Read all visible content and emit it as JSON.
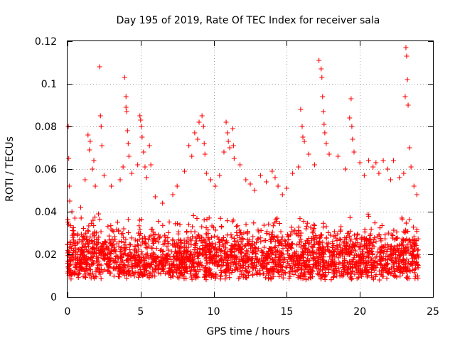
{
  "chart_data": {
    "type": "scatter",
    "title": "Day 195 of 2019, Rate Of TEC Index for receiver sala",
    "xlabel": "GPS time / hours",
    "ylabel": "ROTI / TECUs",
    "xlim": [
      0,
      25
    ],
    "ylim": [
      0,
      0.12
    ],
    "x_ticks": [
      0,
      5,
      10,
      15,
      20,
      25
    ],
    "y_ticks": [
      0,
      0.02,
      0.04,
      0.06,
      0.08,
      0.1,
      0.12
    ],
    "x_tick_labels": [
      "0",
      "5",
      "10",
      "15",
      "20",
      "25"
    ],
    "y_tick_labels": [
      "0",
      "0.02",
      "0.04",
      "0.06",
      "0.08",
      "0.1",
      "0.12"
    ],
    "grid": true,
    "marker": "+",
    "series": [
      {
        "name": "ROTI",
        "color": "#ff0000",
        "band": {
          "x_range": [
            0,
            24
          ],
          "y_low": 0.004,
          "y_high": 0.032,
          "count": 2600
        },
        "x": [
          0.05,
          0.08,
          0.12,
          0.15,
          0.3,
          0.5,
          0.9,
          1.2,
          1.4,
          1.5,
          1.55,
          1.7,
          1.8,
          1.9,
          2.2,
          2.25,
          2.3,
          2.35,
          2.5,
          3.0,
          3.6,
          3.8,
          3.9,
          4.0,
          4.0,
          4.05,
          4.1,
          4.15,
          4.2,
          4.4,
          4.8,
          4.95,
          5.0,
          5.05,
          5.1,
          5.2,
          5.3,
          5.4,
          5.6,
          5.7,
          6.0,
          6.5,
          7.2,
          7.5,
          8.0,
          8.3,
          8.5,
          8.7,
          8.9,
          9.0,
          9.2,
          9.3,
          9.35,
          9.4,
          9.5,
          9.8,
          10.1,
          10.4,
          10.7,
          10.85,
          10.95,
          11.0,
          11.1,
          11.3,
          11.35,
          11.4,
          11.8,
          12.2,
          12.5,
          12.8,
          13.2,
          13.6,
          14.0,
          14.2,
          14.4,
          14.7,
          15.0,
          15.4,
          15.8,
          15.95,
          16.05,
          16.1,
          16.2,
          16.5,
          16.9,
          17.2,
          17.35,
          17.4,
          17.45,
          17.5,
          17.55,
          17.6,
          17.7,
          17.9,
          18.5,
          19.0,
          19.3,
          19.4,
          19.45,
          19.5,
          19.6,
          20.0,
          20.3,
          20.6,
          20.9,
          21.1,
          21.3,
          21.6,
          21.9,
          22.1,
          22.3,
          22.7,
          23.0,
          23.1,
          23.15,
          23.2,
          23.25,
          23.3,
          23.4,
          23.5,
          23.7,
          23.9
        ],
        "y": [
          0.08,
          0.065,
          0.052,
          0.045,
          0.04,
          0.037,
          0.042,
          0.055,
          0.076,
          0.069,
          0.073,
          0.06,
          0.064,
          0.052,
          0.108,
          0.085,
          0.08,
          0.071,
          0.057,
          0.052,
          0.055,
          0.061,
          0.103,
          0.094,
          0.089,
          0.087,
          0.078,
          0.072,
          0.066,
          0.058,
          0.062,
          0.085,
          0.083,
          0.08,
          0.075,
          0.068,
          0.061,
          0.056,
          0.071,
          0.062,
          0.047,
          0.044,
          0.048,
          0.052,
          0.059,
          0.071,
          0.066,
          0.077,
          0.074,
          0.082,
          0.085,
          0.08,
          0.072,
          0.067,
          0.058,
          0.055,
          0.052,
          0.057,
          0.068,
          0.082,
          0.077,
          0.073,
          0.07,
          0.079,
          0.071,
          0.065,
          0.062,
          0.055,
          0.053,
          0.05,
          0.057,
          0.054,
          0.059,
          0.056,
          0.052,
          0.048,
          0.051,
          0.058,
          0.061,
          0.088,
          0.08,
          0.075,
          0.073,
          0.067,
          0.062,
          0.111,
          0.107,
          0.103,
          0.094,
          0.087,
          0.081,
          0.077,
          0.072,
          0.067,
          0.066,
          0.06,
          0.084,
          0.093,
          0.08,
          0.074,
          0.068,
          0.063,
          0.057,
          0.064,
          0.061,
          0.063,
          0.058,
          0.064,
          0.06,
          0.055,
          0.064,
          0.056,
          0.058,
          0.094,
          0.117,
          0.113,
          0.102,
          0.09,
          0.07,
          0.061,
          0.052,
          0.048
        ]
      }
    ]
  }
}
